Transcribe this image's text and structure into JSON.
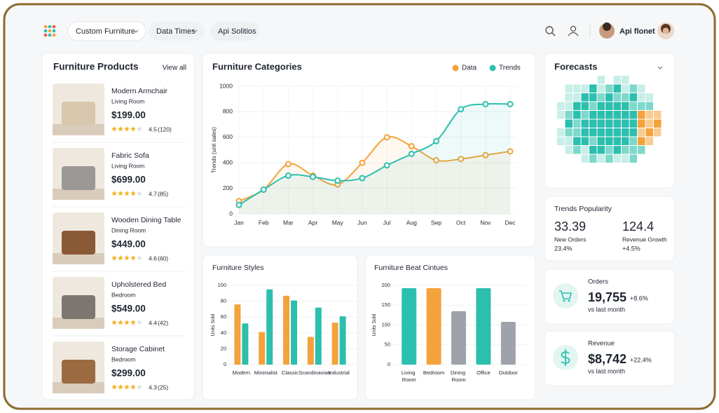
{
  "nav": {
    "menu": [
      "Custom Furniture",
      "Data Times",
      "Api Solitios"
    ],
    "user": "Api flonet"
  },
  "products": {
    "title": "Furniture Products",
    "link": "View all",
    "items": [
      {
        "name": "Modern Armchair",
        "category": "Living Room",
        "price": "$199.00",
        "rating": 4.5,
        "reviews": "(120)"
      },
      {
        "name": "Fabric Sofa",
        "category": "Living Room",
        "price": "$699.00",
        "rating": 4.7,
        "reviews": "(85)"
      },
      {
        "name": "Wooden Dining Table",
        "category": "Dining Room",
        "price": "$449.00",
        "rating": 4.6,
        "reviews": "(60)"
      },
      {
        "name": "Upholstered Bed",
        "category": "Bedroom",
        "price": "$549.00",
        "rating": 4.4,
        "reviews": "(42)"
      },
      {
        "name": "Storage Cabinet",
        "category": "Bedroom",
        "price": "$299.00",
        "rating": 4.3,
        "reviews": "(25)"
      }
    ]
  },
  "chart_data": [
    {
      "type": "line",
      "title": "Furniture Categories",
      "ylabel": "Trends (unit sales)",
      "categories": [
        "Jan",
        "Feb",
        "Mar",
        "Apr",
        "May",
        "Jun",
        "Jul",
        "Aug",
        "Sep",
        "Oct",
        "Nov",
        "Dec"
      ],
      "series": [
        {
          "name": "Data",
          "color": "#f4a23b",
          "values": [
            100,
            190,
            390,
            300,
            230,
            400,
            600,
            530,
            420,
            430,
            460,
            490
          ]
        },
        {
          "name": "Trends",
          "color": "#2cbfae",
          "values": [
            70,
            190,
            300,
            290,
            260,
            280,
            380,
            470,
            570,
            820,
            860,
            860
          ]
        }
      ],
      "ylim": [
        0,
        1000
      ],
      "yticks": [
        0,
        200,
        400,
        600,
        800,
        1000
      ],
      "grid": true,
      "legend": "top-right"
    },
    {
      "type": "bar",
      "title": "Furniture Styles",
      "ylabel": "Units Sold",
      "categories": [
        "Modern",
        "Minimalist",
        "Classic",
        "Scandinavian",
        "Industrial"
      ],
      "series": [
        {
          "color": "#f4a23b",
          "values": [
            76,
            41,
            87,
            35,
            53
          ]
        },
        {
          "color": "#2cbfae",
          "values": [
            52,
            95,
            81,
            72,
            61
          ]
        }
      ],
      "ylim": [
        0,
        100
      ],
      "yticks": [
        0,
        20,
        40,
        60,
        80,
        100
      ],
      "grid": true
    },
    {
      "type": "bar",
      "title": "Furniture Beat Cintues",
      "ylabel": "Units Sold",
      "categories": [
        "Living Room",
        "Bedroom",
        "Dining Room",
        "Office",
        "Outdoor"
      ],
      "values": [
        193,
        193,
        135,
        193,
        108
      ],
      "colors": [
        "#2cbfae",
        "#f4a23b",
        "#9ea3ab",
        "#2cbfae",
        "#9ea3ab"
      ],
      "ylim": [
        0,
        200
      ],
      "yticks": [
        0,
        50,
        100,
        150,
        200
      ],
      "grid": true
    }
  ],
  "forecasts": {
    "title": "Forecasts"
  },
  "trends_popularity": {
    "title": "Trends Popularity",
    "stats": [
      {
        "value": 33.39,
        "label": "New Orders",
        "change": "23.4%"
      },
      {
        "value": 124.4,
        "label": "Revenue Growth",
        "change": "+4.5%"
      }
    ]
  },
  "kpis": [
    {
      "title": "Orders",
      "value": "19,755",
      "change": "+8.6%",
      "note": "vs last month"
    },
    {
      "title": "Revenue",
      "value": "$8,742",
      "change": "+22.4%",
      "note": "vs last month"
    }
  ]
}
